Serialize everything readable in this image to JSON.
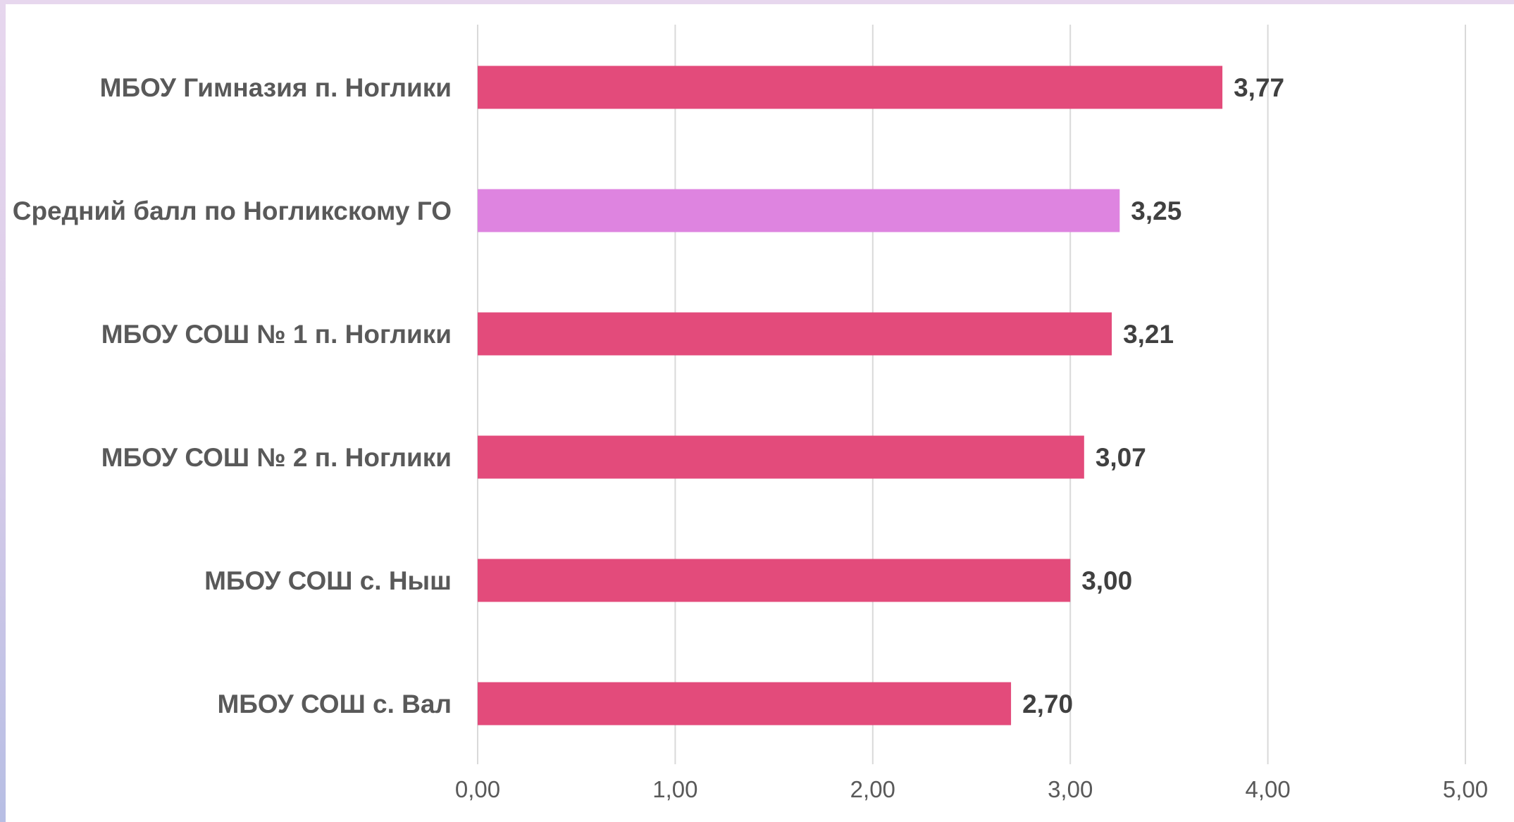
{
  "colors": {
    "bar": "#e34b7b",
    "highlight_bar": "#de84e0",
    "gridline": "#d9d9d9",
    "category_text": "#595959",
    "value_text": "#404040",
    "tick_text": "#595959"
  },
  "chart_data": {
    "type": "bar",
    "orientation": "horizontal",
    "title": "",
    "xlabel": "",
    "ylabel": "",
    "categories": [
      "МБОУ Гимназия п. Ноглики",
      "Средний балл по Ногликскому ГО",
      "МБОУ СОШ № 1 п. Ноглики",
      "МБОУ СОШ № 2 п. Ноглики",
      "МБОУ СОШ с. Ныш",
      "МБОУ СОШ с. Вал"
    ],
    "values": [
      3.77,
      3.25,
      3.21,
      3.07,
      3.0,
      2.7
    ],
    "value_labels": [
      "3,77",
      "3,25",
      "3,21",
      "3,07",
      "3,00",
      "2,70"
    ],
    "highlighted_index": 1,
    "xlim": [
      0,
      5
    ],
    "ticks": [
      0,
      1,
      2,
      3,
      4,
      5
    ],
    "tick_labels": [
      "0,00",
      "1,00",
      "2,00",
      "3,00",
      "4,00",
      "5,00"
    ],
    "grid": true,
    "legend": "none"
  }
}
